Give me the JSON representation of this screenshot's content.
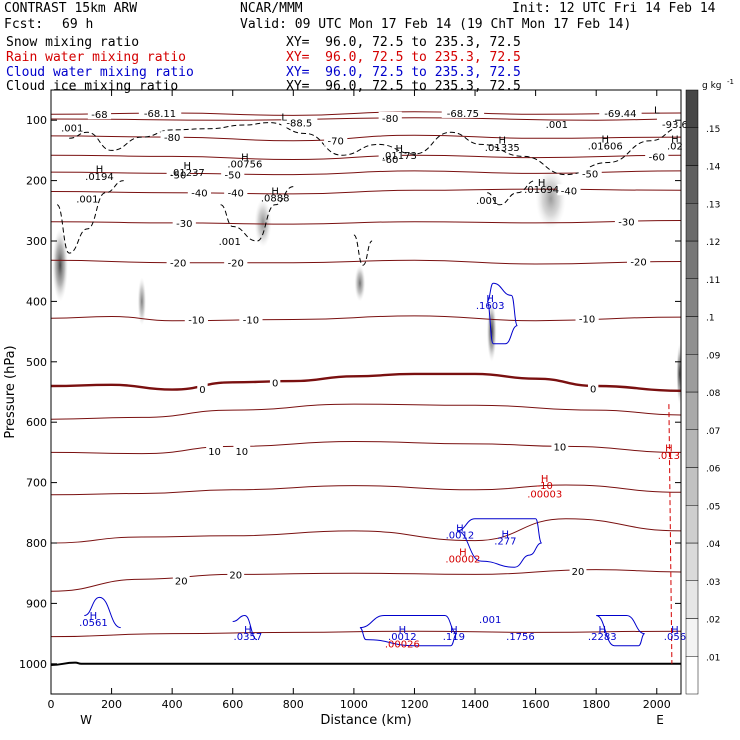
{
  "header": {
    "model": "CONTRAST 15km ARW",
    "org": "NCAR/MMM",
    "init": "Init: 12 UTC Fri 14 Feb 14",
    "fcst_label": "Fcst:",
    "fcst_value": "69 h",
    "valid": "Valid: 09 UTC Mon 17 Feb 14 (19 ChT Mon 17 Feb 14)",
    "fields": [
      {
        "name": "Snow mixing ratio",
        "xy": "XY=  96.0, 72.5 to 235.3, 72.5",
        "color": "#000000"
      },
      {
        "name": "Rain water mixing ratio",
        "xy": "XY=  96.0, 72.5 to 235.3, 72.5",
        "color": "#d40000"
      },
      {
        "name": "Cloud water mixing ratio",
        "xy": "XY=  96.0, 72.5 to 235.3, 72.5",
        "color": "#0000cc"
      },
      {
        "name": "Cloud ice mixing ratio",
        "xy": "XY=  96.0, 72.5 to 235.3, 72.5",
        "color": "#000000"
      }
    ]
  },
  "colorbar": {
    "unit": "g kg",
    "unit_exp": "-1",
    "levels": [
      ".01",
      ".02",
      ".03",
      ".04",
      ".05",
      ".06",
      ".07",
      ".08",
      ".09",
      ".1",
      ".11",
      ".12",
      ".13",
      ".14",
      ".15"
    ]
  },
  "chart_data": {
    "type": "contour",
    "xlabel": "Distance (km)",
    "ylabel": "Pressure (hPa)",
    "xlim": [
      0,
      2080
    ],
    "ylim": [
      1050,
      50
    ],
    "x_ticks": [
      "0",
      "200",
      "400",
      "600",
      "800",
      "1000",
      "1200",
      "1400",
      "1600",
      "1800",
      "2000"
    ],
    "y_ticks": [
      "100",
      "200",
      "300",
      "400",
      "500",
      "600",
      "700",
      "800",
      "900",
      "1000"
    ],
    "west_label": "W",
    "east_label": "E",
    "colors": {
      "temperature": "#7a1010",
      "zero_line": "#7a1010",
      "surface": "#000000",
      "cloud_ice": "#000000",
      "cloud_water": "#0000cc",
      "rain": "#d40000"
    },
    "temperature_contours": [
      {
        "value": -68,
        "x": [
          0,
          400,
          800,
          1200,
          1600,
          2080
        ],
        "p": [
          90,
          88,
          92,
          86,
          90,
          88
        ]
      },
      {
        "value": -80,
        "x": [
          0,
          600,
          1200,
          1800,
          2080
        ],
        "p": [
          98,
          100,
          96,
          100,
          98
        ]
      },
      {
        "value": -70,
        "x": [
          0,
          400,
          800,
          1200,
          1600,
          2080
        ],
        "p": [
          126,
          128,
          134,
          125,
          130,
          128
        ]
      },
      {
        "value": -60,
        "x": [
          0,
          400,
          800,
          1200,
          1600,
          2080
        ],
        "p": [
          158,
          160,
          165,
          158,
          162,
          158
        ]
      },
      {
        "value": -50,
        "x": [
          0,
          400,
          800,
          1200,
          1600,
          2080
        ],
        "p": [
          186,
          188,
          190,
          184,
          188,
          184
        ]
      },
      {
        "value": -40,
        "x": [
          0,
          400,
          800,
          1200,
          1600,
          2080
        ],
        "p": [
          218,
          220,
          222,
          216,
          214,
          216
        ]
      },
      {
        "value": -30,
        "x": [
          0,
          400,
          800,
          1200,
          1600,
          2080
        ],
        "p": [
          268,
          270,
          272,
          268,
          270,
          266
        ]
      },
      {
        "value": -20,
        "x": [
          0,
          400,
          800,
          1200,
          1600,
          2080
        ],
        "p": [
          332,
          336,
          336,
          332,
          338,
          334
        ]
      },
      {
        "value": -10,
        "x": [
          0,
          200,
          400,
          800,
          1200,
          1600,
          2080
        ],
        "p": [
          428,
          425,
          432,
          430,
          424,
          432,
          426
        ]
      },
      {
        "value": 0,
        "x": [
          0,
          200,
          400,
          600,
          800,
          1000,
          1200,
          1400,
          1600,
          1800,
          2080
        ],
        "p": [
          540,
          538,
          546,
          534,
          532,
          524,
          520,
          520,
          528,
          540,
          548
        ]
      },
      {
        "value": 5,
        "x": [
          0,
          300,
          600,
          1000,
          1400,
          1800,
          2080
        ],
        "p": [
          595,
          592,
          580,
          570,
          572,
          580,
          588
        ]
      },
      {
        "value": 10,
        "x": [
          0,
          300,
          600,
          1000,
          1400,
          1700,
          2080
        ],
        "p": [
          650,
          652,
          640,
          632,
          636,
          640,
          650
        ]
      },
      {
        "value": 15,
        "x": [
          0,
          300,
          600,
          1000,
          1400,
          1700,
          2080
        ],
        "p": [
          720,
          718,
          712,
          705,
          712,
          704,
          716
        ]
      },
      {
        "value": 20,
        "x": [
          0,
          300,
          600,
          1000,
          1400,
          1700,
          2080
        ],
        "p": [
          800,
          790,
          788,
          780,
          796,
          760,
          780
        ]
      },
      {
        "value": 25,
        "x": [
          0,
          300,
          600,
          1000,
          1400,
          1800,
          2080
        ],
        "p": [
          880,
          860,
          852,
          850,
          852,
          844,
          848
        ]
      },
      {
        "value": 30,
        "x": [
          0,
          400,
          800,
          1200,
          1600,
          2080
        ],
        "p": [
          955,
          950,
          948,
          946,
          948,
          946
        ]
      }
    ],
    "temperature_labels": [
      {
        "text": "-68",
        "x": 160,
        "p": 90
      },
      {
        "text": "-68.11",
        "x": 360,
        "p": 88
      },
      {
        "text": "-68.75",
        "x": 1360,
        "p": 88
      },
      {
        "text": "-69.44",
        "x": 1880,
        "p": 88
      },
      {
        "text": "-80",
        "x": 1120,
        "p": 96
      },
      {
        "text": "-88.5",
        "x": 820,
        "p": 104
      },
      {
        "text": "-93.6",
        "x": 2060,
        "p": 106
      },
      {
        "text": "-80",
        "x": 400,
        "p": 128
      },
      {
        "text": "-70",
        "x": 940,
        "p": 134
      },
      {
        "text": "-60",
        "x": 1120,
        "p": 164
      },
      {
        "text": "-60",
        "x": 2000,
        "p": 160
      },
      {
        "text": "-50",
        "x": 420,
        "p": 190
      },
      {
        "text": "-50",
        "x": 600,
        "p": 190
      },
      {
        "text": "-50",
        "x": 1780,
        "p": 188
      },
      {
        "text": "-40",
        "x": 490,
        "p": 220
      },
      {
        "text": "-40",
        "x": 610,
        "p": 220
      },
      {
        "text": "-40",
        "x": 1710,
        "p": 216
      },
      {
        "text": "-30",
        "x": 440,
        "p": 270
      },
      {
        "text": "-30",
        "x": 1900,
        "p": 268
      },
      {
        "text": "-20",
        "x": 420,
        "p": 336
      },
      {
        "text": "-20",
        "x": 610,
        "p": 336
      },
      {
        "text": "-20",
        "x": 1940,
        "p": 334
      },
      {
        "text": "-10",
        "x": 480,
        "p": 430
      },
      {
        "text": "-10",
        "x": 660,
        "p": 430
      },
      {
        "text": "-10",
        "x": 1770,
        "p": 428
      },
      {
        "text": "0",
        "x": 500,
        "p": 545
      },
      {
        "text": "0",
        "x": 740,
        "p": 534
      },
      {
        "text": "0",
        "x": 1790,
        "p": 544
      },
      {
        "text": "10",
        "x": 540,
        "p": 648
      },
      {
        "text": "10",
        "x": 630,
        "p": 648
      },
      {
        "text": "10",
        "x": 1680,
        "p": 640
      },
      {
        "text": "20",
        "x": 430,
        "p": 862
      },
      {
        "text": "20",
        "x": 610,
        "p": 852
      },
      {
        "text": "20",
        "x": 1740,
        "p": 846
      }
    ],
    "cloud_ice_contours": [
      {
        "label": ".001",
        "x": [
          60,
          120,
          200,
          300,
          400,
          520,
          640,
          720,
          840,
          960,
          1080,
          1200,
          1320,
          1420,
          1560,
          1700,
          1840,
          1980,
          2080
        ],
        "p": [
          130,
          120,
          150,
          128,
          116,
          114,
          108,
          104,
          122,
          158,
          140,
          156,
          120,
          140,
          160,
          190,
          170,
          134,
          112
        ]
      },
      {
        "label": ".001",
        "x": [
          20,
          60,
          120,
          180,
          240
        ],
        "p": [
          240,
          320,
          280,
          220,
          200
        ]
      },
      {
        "label": ".001",
        "x": [
          560,
          600,
          680,
          740,
          800
        ],
        "p": [
          240,
          276,
          300,
          240,
          210
        ]
      },
      {
        "label": ".001",
        "x": [
          1000,
          1030,
          1060
        ],
        "p": [
          290,
          340,
          300
        ]
      },
      {
        "label": ".001",
        "x": [
          1440,
          1480,
          1540,
          1600
        ],
        "p": [
          220,
          240,
          220,
          200
        ]
      }
    ],
    "cloud_ice_labels": [
      {
        "text": ".001",
        "x": 70,
        "p": 112
      },
      {
        "text": ".001",
        "x": 120,
        "p": 230
      },
      {
        "text": ".001",
        "x": 590,
        "p": 300
      },
      {
        "text": ".001",
        "x": 1440,
        "p": 232
      },
      {
        "text": ".001",
        "x": 1670,
        "p": 106
      }
    ],
    "cloud_ice_maxima": [
      {
        "text": "H",
        "value": ".0194",
        "x": 160,
        "p": 186
      },
      {
        "text": "H",
        "value": ".01237",
        "x": 450,
        "p": 180
      },
      {
        "text": "H",
        "value": ".00756",
        "x": 640,
        "p": 166
      },
      {
        "text": "H",
        "value": ".0888",
        "x": 740,
        "p": 222
      },
      {
        "text": "H",
        "value": ".01173",
        "x": 1150,
        "p": 152
      },
      {
        "text": "H",
        "value": ".01335",
        "x": 1490,
        "p": 138
      },
      {
        "text": "H",
        "value": ".01694",
        "x": 1620,
        "p": 208
      },
      {
        "text": "H",
        "value": ".01606",
        "x": 1830,
        "p": 136
      },
      {
        "text": "H",
        "value": ".02",
        "x": 2060,
        "p": 136
      },
      {
        "text": "L",
        "value": "",
        "x": 770,
        "p": 100
      },
      {
        "text": "L",
        "value": "",
        "x": 2000,
        "p": 88
      }
    ],
    "snow_shading": [
      {
        "x": 30,
        "p": 340,
        "rx": 26,
        "rp": 60,
        "value": 0.08
      },
      {
        "x": 300,
        "p": 400,
        "rx": 14,
        "rp": 40,
        "value": 0.04
      },
      {
        "x": 700,
        "p": 270,
        "rx": 28,
        "rp": 40,
        "value": 0.03
      },
      {
        "x": 1020,
        "p": 370,
        "rx": 18,
        "rp": 30,
        "value": 0.05
      },
      {
        "x": 1455,
        "p": 450,
        "rx": 16,
        "rp": 50,
        "value": 0.09
      },
      {
        "x": 1650,
        "p": 230,
        "rx": 50,
        "rp": 50,
        "value": 0.02
      },
      {
        "x": 2075,
        "p": 520,
        "rx": 10,
        "rp": 50,
        "value": 0.09
      }
    ],
    "cloud_water_contours": [
      {
        "x": [
          1440,
          1460,
          1520,
          1540,
          1500,
          1460,
          1440
        ],
        "p": [
          400,
          370,
          390,
          440,
          470,
          470,
          400
        ]
      },
      {
        "x": [
          1340,
          1400,
          1600,
          1620,
          1580,
          1530,
          1420,
          1340
        ],
        "p": [
          780,
          760,
          760,
          800,
          820,
          840,
          830,
          780
        ]
      },
      {
        "x": [
          1020,
          1100,
          1300,
          1340,
          1320,
          1200,
          1040,
          1020
        ],
        "p": [
          940,
          920,
          920,
          950,
          970,
          970,
          960,
          940
        ]
      },
      {
        "x": [
          1800,
          1900,
          1960,
          1940,
          1860,
          1800
        ],
        "p": [
          920,
          920,
          950,
          970,
          970,
          920
        ]
      },
      {
        "x": [
          110,
          160,
          230
        ],
        "p": [
          920,
          890,
          940
        ]
      },
      {
        "x": [
          600,
          640,
          680
        ],
        "p": [
          930,
          920,
          960
        ]
      }
    ],
    "cloud_water_maxima": [
      {
        "text": "H",
        "value": ".1603",
        "x": 1450,
        "p": 400
      },
      {
        "text": "H",
        "value": ".0012",
        "x": 1350,
        "p": 780
      },
      {
        "text": "H",
        "value": ".277",
        "x": 1500,
        "p": 790
      },
      {
        "text": "H",
        "value": ".0561",
        "x": 140,
        "p": 925
      },
      {
        "text": "H",
        "value": ".0357",
        "x": 650,
        "p": 948
      },
      {
        "text": "H",
        "value": ".0012",
        "x": 1160,
        "p": 948
      },
      {
        "text": "H",
        "value": ".119",
        "x": 1330,
        "p": 948
      },
      {
        "text": "",
        "value": ".001",
        "x": 1450,
        "p": 920
      },
      {
        "text": "",
        "value": ".1756",
        "x": 1550,
        "p": 948
      },
      {
        "text": "H",
        "value": ".2283",
        "x": 1820,
        "p": 948
      },
      {
        "text": "H",
        "value": ".056",
        "x": 2060,
        "p": 948
      }
    ],
    "rain_labels": [
      {
        "text": "H",
        "value": ".013",
        "x": 2040,
        "p": 648
      },
      {
        "text": "H",
        "value": "-10",
        "x": 1630,
        "p": 698
      },
      {
        "text": "",
        "value": ".00003",
        "x": 1630,
        "p": 712
      },
      {
        "text": "H",
        "value": ".00002",
        "x": 1360,
        "p": 820
      },
      {
        "text": "",
        "value": ".00026",
        "x": 1160,
        "p": 960
      }
    ],
    "rain_line": {
      "x": 2040,
      "p_top": 570,
      "p_bottom": 1000
    },
    "surface_pressure": {
      "x": [
        0,
        80,
        100,
        200,
        2080
      ],
      "p": [
        1002,
        998,
        1000,
        1000,
        1000
      ]
    }
  }
}
